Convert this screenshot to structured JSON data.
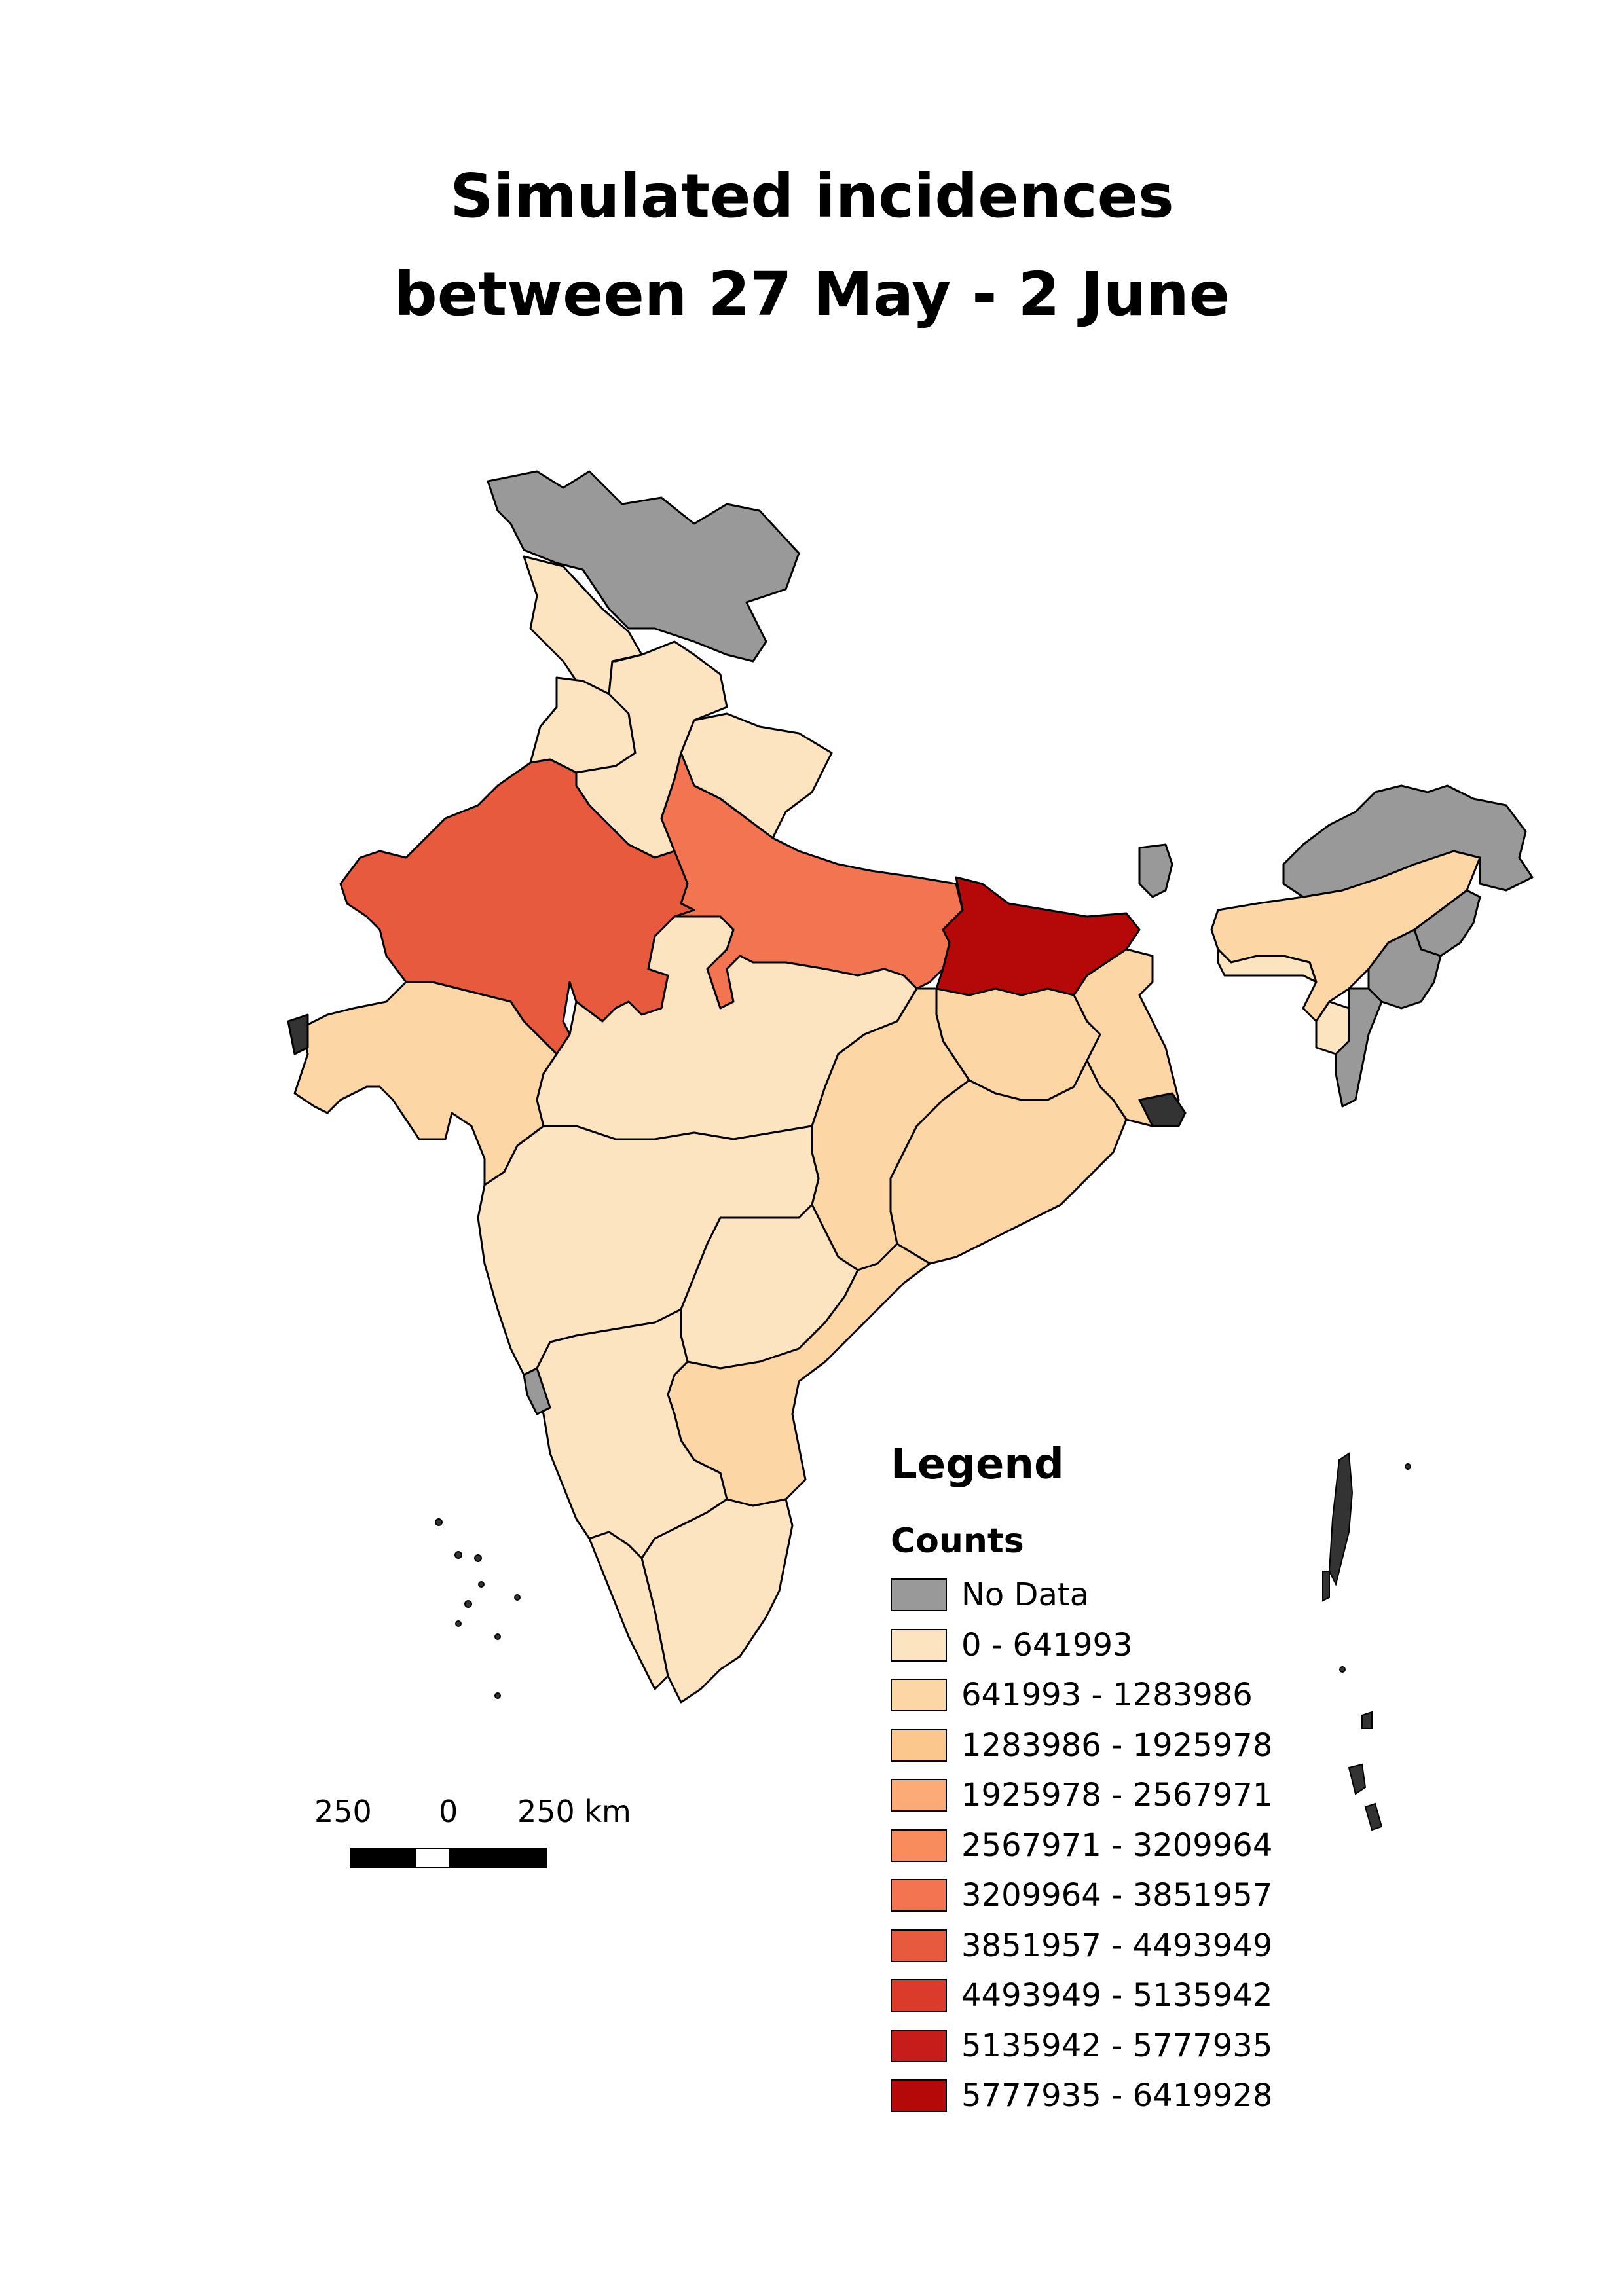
{
  "title": {
    "line1": "Simulated incidences",
    "line2": "between 27 May - 2 June"
  },
  "legend": {
    "title": "Legend",
    "subtitle": "Counts",
    "items": [
      {
        "label": "No Data",
        "color": "#999999"
      },
      {
        "label": "0 - 641993",
        "color": "#fde4c1"
      },
      {
        "label": "641993 - 1283986",
        "color": "#fcd6a4"
      },
      {
        "label": "1283986 - 1925978",
        "color": "#fcc78c"
      },
      {
        "label": "1925978 - 2567971",
        "color": "#fcaa76"
      },
      {
        "label": "2567971 - 3209964",
        "color": "#f88c5c"
      },
      {
        "label": "3209964 - 3851957",
        "color": "#f27451"
      },
      {
        "label": "3851957 - 4493949",
        "color": "#e75a3d"
      },
      {
        "label": "4493949 - 5135942",
        "color": "#da3b2a"
      },
      {
        "label": "5135942 - 5777935",
        "color": "#c71d1a"
      },
      {
        "label": "5777935 - 6419928",
        "color": "#b50808"
      }
    ]
  },
  "scale_bar": {
    "left_label": "250",
    "mid_label": "0",
    "right_label": "250 km"
  },
  "regions": [
    {
      "name": "Jammu and Kashmir",
      "class": "No Data"
    },
    {
      "name": "Himachal Pradesh",
      "class": "0 - 641993"
    },
    {
      "name": "Punjab",
      "class": "0 - 641993"
    },
    {
      "name": "Haryana",
      "class": "0 - 641993"
    },
    {
      "name": "Uttarakhand",
      "class": "0 - 641993"
    },
    {
      "name": "Rajasthan",
      "class": "3851957 - 4493949"
    },
    {
      "name": "Uttar Pradesh",
      "class": "3209964 - 3851957"
    },
    {
      "name": "Bihar",
      "class": "5777935 - 6419928"
    },
    {
      "name": "Gujarat",
      "class": "641993 - 1283986"
    },
    {
      "name": "Madhya Pradesh",
      "class": "0 - 641993"
    },
    {
      "name": "Jharkhand",
      "class": "641993 - 1283986"
    },
    {
      "name": "West Bengal",
      "class": "641993 - 1283986"
    },
    {
      "name": "Chhattisgarh",
      "class": "641993 - 1283986"
    },
    {
      "name": "Odisha",
      "class": "641993 - 1283986"
    },
    {
      "name": "Maharashtra",
      "class": "0 - 641993"
    },
    {
      "name": "Telangana",
      "class": "0 - 641993"
    },
    {
      "name": "Andhra Pradesh",
      "class": "641993 - 1283986"
    },
    {
      "name": "Karnataka",
      "class": "0 - 641993"
    },
    {
      "name": "Kerala",
      "class": "0 - 641993"
    },
    {
      "name": "Tamil Nadu",
      "class": "0 - 641993"
    },
    {
      "name": "Goa",
      "class": "No Data"
    },
    {
      "name": "Sikkim",
      "class": "No Data"
    },
    {
      "name": "Assam",
      "class": "641993 - 1283986"
    },
    {
      "name": "Arunachal Pradesh",
      "class": "No Data"
    },
    {
      "name": "Meghalaya",
      "class": "0 - 641993"
    },
    {
      "name": "Nagaland",
      "class": "No Data"
    },
    {
      "name": "Manipur",
      "class": "No Data"
    },
    {
      "name": "Mizoram",
      "class": "No Data"
    },
    {
      "name": "Tripura",
      "class": "0 - 641993"
    }
  ]
}
